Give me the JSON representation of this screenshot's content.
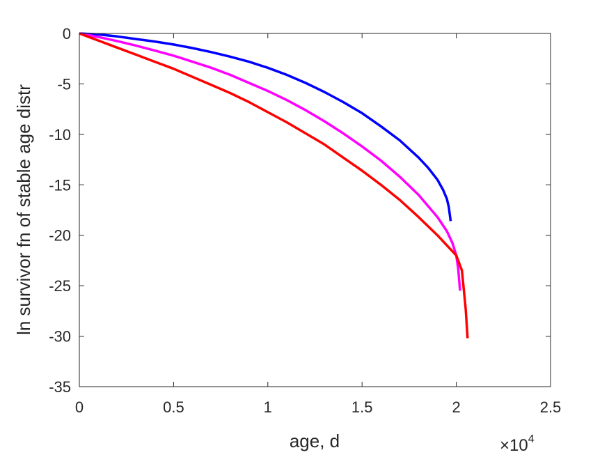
{
  "chart_data": {
    "type": "line",
    "title": "",
    "xlabel": "age, d",
    "ylabel": "ln survivor fn of stable age distr",
    "x_exponent_label": {
      "base": "×10",
      "exponent": "4"
    },
    "xlim": [
      0,
      2.5
    ],
    "ylim": [
      -35,
      0
    ],
    "x_ticks": [
      0,
      0.5,
      1,
      1.5,
      2,
      2.5
    ],
    "x_tick_labels": [
      "0",
      "0.5",
      "1",
      "1.5",
      "2",
      "2.5"
    ],
    "y_ticks": [
      0,
      -5,
      -10,
      -15,
      -20,
      -25,
      -30,
      -35
    ],
    "y_tick_labels": [
      "0",
      "-5",
      "-10",
      "-15",
      "-20",
      "-25",
      "-30",
      "-35"
    ],
    "grid": false,
    "legend": "none",
    "series": [
      {
        "color": "#0000ff",
        "x": [
          0,
          0.1,
          0.2,
          0.3,
          0.4,
          0.5,
          0.6,
          0.7,
          0.8,
          0.9,
          1.0,
          1.1,
          1.2,
          1.3,
          1.4,
          1.5,
          1.6,
          1.7,
          1.8,
          1.85,
          1.9,
          1.93,
          1.95,
          1.96,
          1.97
        ],
        "y": [
          0,
          -0.1,
          -0.3,
          -0.55,
          -0.8,
          -1.1,
          -1.45,
          -1.85,
          -2.3,
          -2.8,
          -3.4,
          -4.1,
          -4.9,
          -5.8,
          -6.8,
          -7.9,
          -9.2,
          -10.6,
          -12.3,
          -13.3,
          -14.5,
          -15.5,
          -16.4,
          -17.2,
          -18.6
        ]
      },
      {
        "color": "#ff00ff",
        "x": [
          0,
          0.1,
          0.2,
          0.3,
          0.4,
          0.5,
          0.6,
          0.7,
          0.8,
          0.9,
          1.0,
          1.1,
          1.2,
          1.3,
          1.4,
          1.5,
          1.6,
          1.7,
          1.8,
          1.9,
          1.95,
          1.98,
          2.0,
          2.01,
          2.02
        ],
        "y": [
          0,
          -0.35,
          -0.75,
          -1.2,
          -1.7,
          -2.2,
          -2.8,
          -3.4,
          -4.1,
          -4.9,
          -5.7,
          -6.6,
          -7.6,
          -8.7,
          -9.9,
          -11.2,
          -12.6,
          -14.2,
          -16.0,
          -18.2,
          -19.6,
          -20.8,
          -22.0,
          -23.3,
          -25.5
        ]
      },
      {
        "color": "#ff0000",
        "x": [
          0,
          0.1,
          0.2,
          0.3,
          0.4,
          0.5,
          0.6,
          0.7,
          0.8,
          0.9,
          1.0,
          1.1,
          1.2,
          1.3,
          1.4,
          1.5,
          1.6,
          1.7,
          1.8,
          1.9,
          2.0,
          2.03,
          2.05,
          2.06
        ],
        "y": [
          0,
          -0.7,
          -1.4,
          -2.1,
          -2.8,
          -3.5,
          -4.3,
          -5.1,
          -5.9,
          -6.8,
          -7.8,
          -8.8,
          -9.9,
          -11.0,
          -12.3,
          -13.6,
          -15.0,
          -16.5,
          -18.2,
          -20.0,
          -22.0,
          -23.5,
          -27.3,
          -30.2
        ]
      }
    ]
  }
}
